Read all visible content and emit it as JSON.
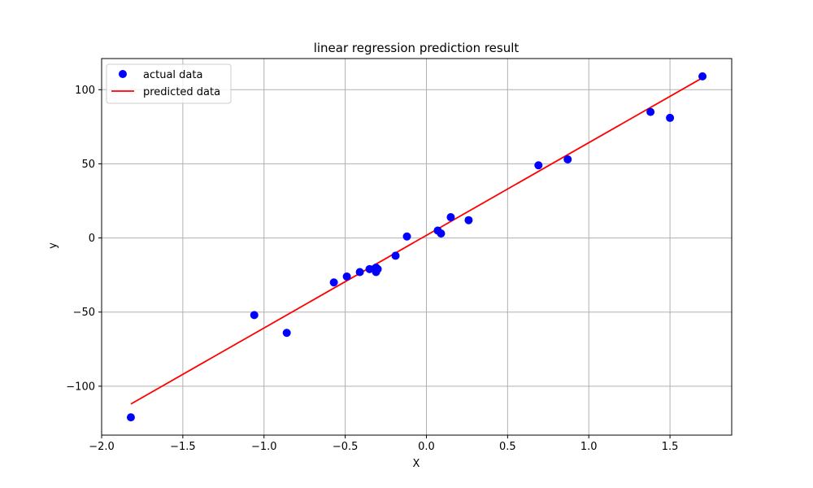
{
  "chart_data": {
    "type": "scatter",
    "title": "linear regression prediction result",
    "xlabel": "X",
    "ylabel": "y",
    "xlim": [
      -2.0,
      1.88
    ],
    "ylim": [
      -133,
      121
    ],
    "xticks": [
      -2.0,
      -1.5,
      -1.0,
      -0.5,
      0.0,
      0.5,
      1.0,
      1.5
    ],
    "xtick_labels": [
      "−2.0",
      "−1.5",
      "−1.0",
      "−0.5",
      "0.0",
      "0.5",
      "1.0",
      "1.5"
    ],
    "yticks": [
      -100,
      -50,
      0,
      50,
      100
    ],
    "ytick_labels": [
      "−100",
      "−50",
      "0",
      "50",
      "100"
    ],
    "grid": true,
    "legend_position": "upper-left",
    "series": [
      {
        "name": "actual data",
        "kind": "scatter",
        "color": "#0000ff",
        "x": [
          -1.82,
          -1.06,
          -0.86,
          -0.57,
          -0.49,
          -0.41,
          -0.35,
          -0.31,
          -0.3,
          -0.31,
          -0.19,
          -0.12,
          0.07,
          0.09,
          0.15,
          0.26,
          0.69,
          0.87,
          1.38,
          1.5,
          1.7
        ],
        "y": [
          -121,
          -52,
          -64,
          -30,
          -26,
          -23,
          -21,
          -20,
          -21,
          -23,
          -12,
          1,
          5,
          3,
          14,
          12,
          49,
          53,
          85,
          81,
          109
        ]
      },
      {
        "name": "predicted data",
        "kind": "line",
        "color": "#ff0000",
        "x": [
          -1.82,
          1.7
        ],
        "y": [
          -112,
          108
        ]
      }
    ]
  }
}
